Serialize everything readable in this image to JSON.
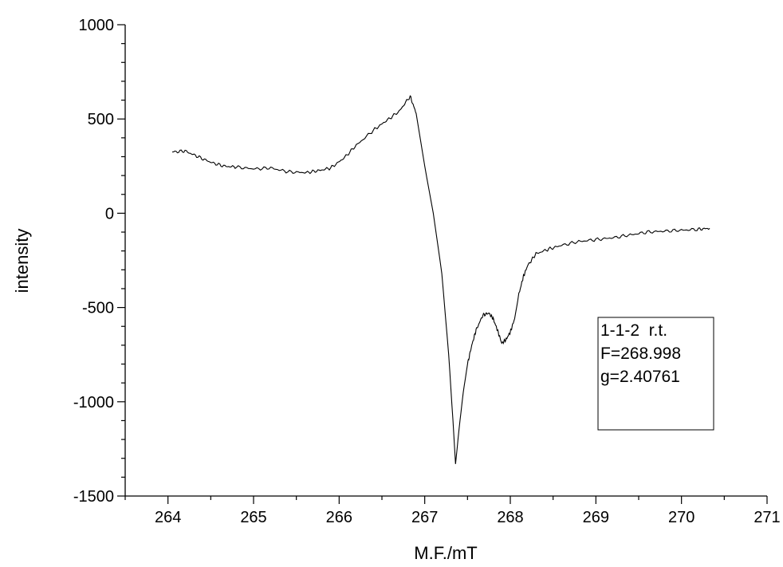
{
  "chart_data": {
    "type": "line",
    "xlabel": "M.F./mT",
    "ylabel": "intensity",
    "xlim": [
      263.5,
      271
    ],
    "ylim": [
      -1500,
      1000
    ],
    "x_ticks_major": [
      "264",
      "265",
      "266",
      "267",
      "268",
      "269",
      "270",
      "271"
    ],
    "y_ticks_major": [
      "1000",
      "500",
      "0",
      "-500",
      "-1000",
      "-1500"
    ],
    "x_minor_step": 0.5,
    "y_minor_step": 100,
    "grid": false,
    "legend": null,
    "annotation": {
      "lines": [
        "1-1-2  r.t.",
        "F=268.998",
        "g=2.40761"
      ],
      "position": "bottom-right"
    },
    "series": [
      {
        "color": "#000000",
        "x": [
          264.05,
          264.2,
          264.35,
          264.5,
          264.65,
          264.8,
          265.0,
          265.2,
          265.4,
          265.6,
          265.75,
          265.9,
          266.05,
          266.2,
          266.4,
          266.55,
          266.7,
          266.83,
          266.9,
          267.0,
          267.1,
          267.2,
          267.28,
          267.33,
          267.36,
          267.4,
          267.45,
          267.5,
          267.55,
          267.6,
          267.68,
          267.75,
          267.8,
          267.85,
          267.9,
          267.95,
          268.0,
          268.05,
          268.1,
          268.15,
          268.2,
          268.3,
          268.45,
          268.6,
          268.8,
          269.0,
          269.2,
          269.4,
          269.6,
          269.8,
          270.0,
          270.2,
          270.33
        ],
        "y": [
          325,
          330,
          300,
          270,
          250,
          245,
          235,
          240,
          220,
          215,
          225,
          240,
          290,
          360,
          440,
          490,
          540,
          620,
          530,
          250,
          0,
          -320,
          -750,
          -1100,
          -1330,
          -1150,
          -950,
          -800,
          -700,
          -620,
          -540,
          -530,
          -560,
          -620,
          -690,
          -670,
          -630,
          -560,
          -430,
          -340,
          -280,
          -215,
          -190,
          -170,
          -150,
          -140,
          -130,
          -115,
          -100,
          -95,
          -90,
          -85,
          -80
        ]
      }
    ]
  }
}
